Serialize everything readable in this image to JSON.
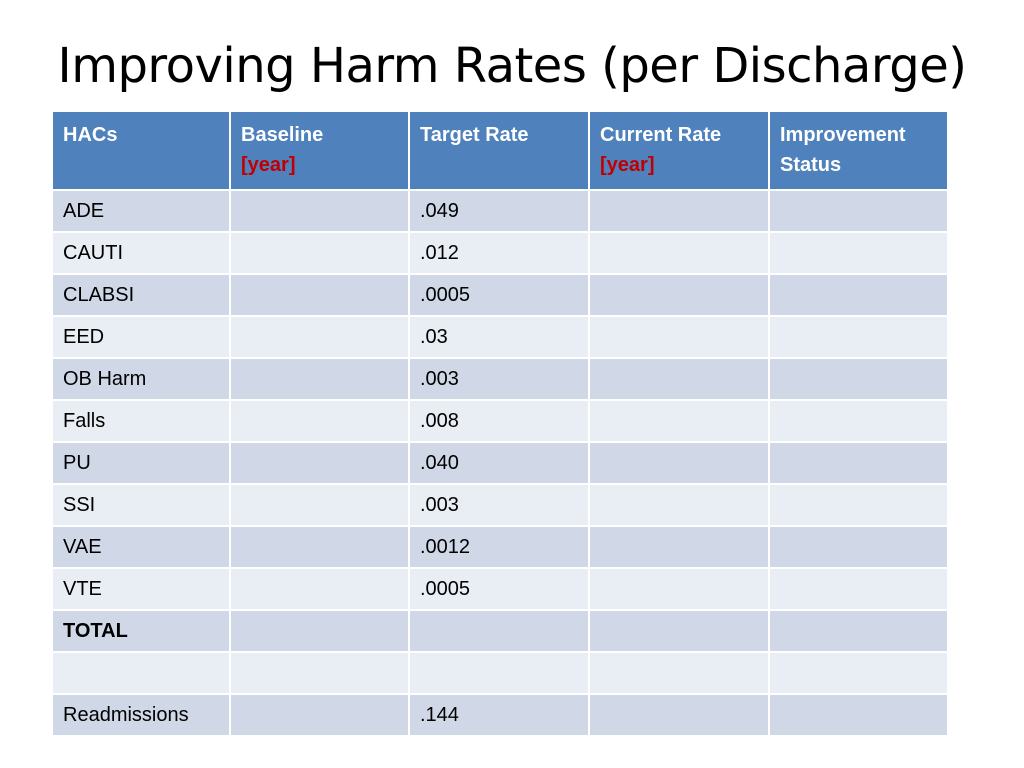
{
  "title": "Improving Harm Rates (per Discharge)",
  "table": {
    "headers": {
      "hacs": "HACs",
      "baseline": "Baseline",
      "baseline_year": "[year]",
      "target_rate": "Target Rate",
      "current_rate": "Current Rate",
      "current_year": "[year]",
      "improvement_status": "Improvement Status"
    },
    "rows": [
      {
        "hac": "ADE",
        "baseline": "",
        "target": ".049",
        "current": "",
        "status": ""
      },
      {
        "hac": "CAUTI",
        "baseline": "",
        "target": ".012",
        "current": "",
        "status": ""
      },
      {
        "hac": "CLABSI",
        "baseline": "",
        "target": ".0005",
        "current": "",
        "status": ""
      },
      {
        "hac": "EED",
        "baseline": "",
        "target": ".03",
        "current": "",
        "status": ""
      },
      {
        "hac": "OB Harm",
        "baseline": "",
        "target": ".003",
        "current": "",
        "status": ""
      },
      {
        "hac": "Falls",
        "baseline": "",
        "target": ".008",
        "current": "",
        "status": ""
      },
      {
        "hac": "PU",
        "baseline": "",
        "target": ".040",
        "current": "",
        "status": ""
      },
      {
        "hac": "SSI",
        "baseline": "",
        "target": ".003",
        "current": "",
        "status": ""
      },
      {
        "hac": "VAE",
        "baseline": "",
        "target": ".0012",
        "current": "",
        "status": ""
      },
      {
        "hac": "VTE",
        "baseline": "",
        "target": ".0005",
        "current": "",
        "status": ""
      },
      {
        "hac": "TOTAL",
        "baseline": "",
        "target": "",
        "current": "",
        "status": ""
      },
      {
        "hac": "",
        "baseline": "",
        "target": "",
        "current": "",
        "status": ""
      },
      {
        "hac": "Readmissions",
        "baseline": "",
        "target": ".144",
        "current": "",
        "status": ""
      }
    ]
  },
  "colors": {
    "header_bg": "#4f81bd",
    "row_dark": "#d0d8e8",
    "row_light": "#e9edf4",
    "year_red": "#c00000"
  }
}
